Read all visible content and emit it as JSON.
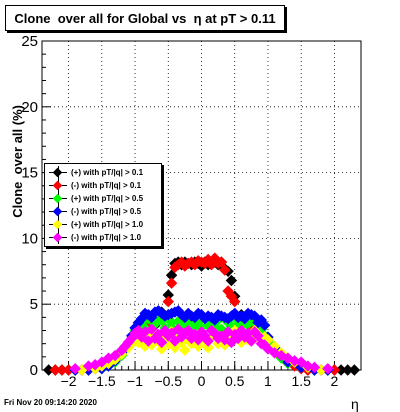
{
  "header": {
    "title": "Clone  over all for Global vs  η at pT > 0.11",
    "datestamp": "Fri Nov 20 09:14:20 2020"
  },
  "chart_data": {
    "type": "scatter",
    "title": "Clone  over all for Global vs  η at pT > 0.11",
    "xlabel": "η",
    "ylabel": "Clone  over all (%)",
    "xlim": [
      -2.4,
      2.4
    ],
    "ylim": [
      0,
      25
    ],
    "xticks": [
      "−2",
      "−1.5",
      "−1",
      "−0.5",
      "0",
      "0.5",
      "1",
      "1.5",
      "2"
    ],
    "xtick_values": [
      -2,
      -1.5,
      -1,
      -0.5,
      0,
      0.5,
      1,
      1.5,
      2
    ],
    "yticks": [
      "0",
      "5",
      "10",
      "15",
      "20",
      "25"
    ],
    "ytick_values": [
      0,
      5,
      10,
      15,
      20,
      25
    ],
    "grid": true,
    "legend_position": "middle-left",
    "marker": "diamond",
    "series": [
      {
        "name": "(+) with pT/|q| > 0.1",
        "color": "#000000",
        "x": [
          -2.3,
          -2.2,
          -2.1,
          -2.0,
          -1.9,
          -1.8,
          -1.7,
          -1.6,
          -1.5,
          -1.4,
          -1.3,
          -1.2,
          -1.1,
          -1.0,
          -0.9,
          -0.8,
          -0.7,
          -0.6,
          -0.5,
          -0.45,
          -0.4,
          -0.35,
          -0.3,
          -0.25,
          -0.2,
          -0.15,
          -0.1,
          -0.05,
          0.0,
          0.05,
          0.1,
          0.15,
          0.2,
          0.25,
          0.3,
          0.35,
          0.4,
          0.45,
          0.5,
          0.6,
          0.7,
          0.8,
          0.9,
          1.0,
          1.1,
          1.2,
          1.3,
          1.4,
          1.5,
          1.6,
          1.7,
          1.8,
          1.9,
          2.0,
          2.1,
          2.2,
          2.3
        ],
        "y": [
          0,
          0,
          0,
          0,
          0,
          0,
          0,
          0.1,
          0.3,
          0.6,
          1.0,
          1.5,
          2.0,
          2.5,
          3.0,
          3.2,
          3.4,
          4.4,
          5.7,
          7.2,
          8.1,
          8.2,
          8.0,
          8.2,
          8.1,
          8.0,
          8.2,
          8.1,
          7.9,
          8.2,
          8.0,
          8.1,
          8.2,
          8.0,
          8.2,
          7.7,
          7.5,
          6.8,
          5.6,
          4.2,
          3.2,
          3.0,
          2.7,
          2.3,
          1.7,
          1.1,
          0.8,
          0.4,
          0.2,
          0,
          0,
          0,
          0,
          0,
          0,
          0,
          0
        ]
      },
      {
        "name": "(-) with pT/|q| > 0.1",
        "color": "#ff0000",
        "x": [
          -2.2,
          -2.1,
          -2.0,
          -1.9,
          -1.8,
          -1.7,
          -1.6,
          -1.5,
          -1.4,
          -1.3,
          -1.2,
          -1.1,
          -1.0,
          -0.9,
          -0.8,
          -0.7,
          -0.6,
          -0.5,
          -0.45,
          -0.4,
          -0.35,
          -0.3,
          -0.25,
          -0.2,
          -0.15,
          -0.1,
          -0.05,
          0.0,
          0.05,
          0.1,
          0.15,
          0.2,
          0.25,
          0.3,
          0.35,
          0.4,
          0.45,
          0.5,
          0.6,
          0.7,
          0.8,
          0.9,
          1.0,
          1.1,
          1.2,
          1.3,
          1.4,
          1.5,
          1.6,
          1.7,
          1.8,
          1.9,
          2.0
        ],
        "y": [
          0,
          0,
          0,
          0,
          0,
          0,
          0.1,
          0.2,
          0.5,
          0.9,
          1.4,
          2.0,
          2.4,
          3.5,
          3.4,
          3.6,
          4.0,
          5.2,
          6.6,
          7.8,
          8.0,
          8.2,
          7.9,
          8.1,
          8.2,
          8.0,
          8.3,
          8.2,
          8.1,
          8.4,
          8.0,
          8.5,
          8.1,
          8.2,
          7.6,
          6.0,
          5.6,
          5.2,
          4.0,
          3.4,
          3.2,
          2.8,
          2.3,
          1.4,
          1.0,
          0.6,
          0.3,
          0.1,
          0,
          0,
          0,
          0,
          0
        ]
      },
      {
        "name": "(+) with pT/|q| > 0.5",
        "color": "#00ff00",
        "x": [
          -1.9,
          -1.7,
          -1.5,
          -1.4,
          -1.3,
          -1.2,
          -1.1,
          -1.05,
          -1.0,
          -0.95,
          -0.9,
          -0.85,
          -0.8,
          -0.75,
          -0.7,
          -0.65,
          -0.6,
          -0.55,
          -0.5,
          -0.45,
          -0.4,
          -0.35,
          -0.3,
          -0.25,
          -0.2,
          -0.15,
          -0.1,
          -0.05,
          0.0,
          0.05,
          0.1,
          0.15,
          0.2,
          0.25,
          0.3,
          0.35,
          0.4,
          0.45,
          0.5,
          0.55,
          0.6,
          0.65,
          0.7,
          0.75,
          0.8,
          0.85,
          0.9,
          0.95,
          1.0,
          1.1,
          1.2,
          1.3,
          1.5,
          1.7,
          1.9
        ],
        "y": [
          0,
          0,
          0.1,
          0.3,
          0.6,
          1.1,
          1.8,
          2.4,
          3.0,
          3.3,
          3.6,
          3.2,
          3.9,
          3.0,
          3.5,
          4.1,
          3.8,
          3.2,
          3.9,
          3.6,
          3.0,
          3.7,
          3.4,
          3.1,
          3.8,
          3.5,
          3.3,
          3.6,
          3.2,
          3.9,
          3.4,
          3.7,
          3.3,
          3.8,
          3.1,
          3.9,
          3.6,
          3.3,
          4.0,
          3.4,
          3.8,
          3.3,
          3.5,
          4.0,
          3.6,
          3.2,
          3.1,
          2.6,
          2.1,
          1.4,
          0.9,
          0.5,
          0.2,
          0,
          0
        ]
      },
      {
        "name": "(-) with pT/|q| > 0.5",
        "color": "#0000ff",
        "x": [
          -1.9,
          -1.7,
          -1.5,
          -1.4,
          -1.3,
          -1.2,
          -1.1,
          -1.05,
          -1.0,
          -0.95,
          -0.9,
          -0.85,
          -0.8,
          -0.75,
          -0.7,
          -0.65,
          -0.6,
          -0.55,
          -0.5,
          -0.45,
          -0.4,
          -0.35,
          -0.3,
          -0.25,
          -0.2,
          -0.15,
          -0.1,
          -0.05,
          0.0,
          0.05,
          0.1,
          0.15,
          0.2,
          0.25,
          0.3,
          0.35,
          0.4,
          0.45,
          0.5,
          0.55,
          0.6,
          0.65,
          0.7,
          0.75,
          0.8,
          0.85,
          0.9,
          0.95,
          1.0,
          1.1,
          1.2,
          1.3,
          1.5,
          1.7,
          1.9
        ],
        "y": [
          0,
          0,
          0.1,
          0.3,
          0.7,
          1.3,
          2.1,
          2.6,
          3.2,
          3.6,
          3.9,
          4.3,
          4.2,
          4.0,
          4.4,
          4.5,
          4.3,
          4.1,
          4.2,
          4.3,
          4.4,
          4.5,
          4.2,
          4.0,
          4.3,
          4.1,
          4.0,
          4.3,
          4.2,
          3.9,
          4.1,
          4.0,
          3.8,
          4.2,
          4.1,
          4.0,
          3.9,
          4.1,
          4.3,
          4.0,
          4.1,
          3.9,
          4.3,
          4.2,
          4.1,
          3.6,
          3.8,
          3.4,
          2.5,
          1.7,
          1.1,
          0.6,
          0.2,
          0,
          0
        ]
      },
      {
        "name": "(+) with pT/|q| > 1.0",
        "color": "#ffff00",
        "x": [
          -1.8,
          -1.6,
          -1.5,
          -1.4,
          -1.3,
          -1.2,
          -1.1,
          -1.05,
          -1.0,
          -0.95,
          -0.9,
          -0.85,
          -0.8,
          -0.75,
          -0.7,
          -0.65,
          -0.6,
          -0.55,
          -0.5,
          -0.45,
          -0.4,
          -0.35,
          -0.3,
          -0.25,
          -0.2,
          -0.15,
          -0.1,
          -0.05,
          0.0,
          0.05,
          0.1,
          0.15,
          0.2,
          0.25,
          0.3,
          0.35,
          0.4,
          0.45,
          0.5,
          0.55,
          0.6,
          0.65,
          0.7,
          0.75,
          0.8,
          0.85,
          0.9,
          0.95,
          1.0,
          1.1,
          1.2,
          1.3,
          1.4,
          1.6,
          1.8
        ],
        "y": [
          0,
          0.1,
          0.3,
          0.5,
          0.8,
          1.2,
          1.7,
          2.0,
          2.4,
          2.1,
          2.7,
          1.8,
          2.5,
          1.9,
          2.8,
          2.2,
          1.6,
          2.6,
          2.0,
          2.9,
          1.7,
          2.4,
          2.1,
          1.5,
          2.3,
          2.0,
          2.6,
          1.8,
          2.9,
          2.2,
          1.7,
          2.5,
          2.8,
          2.0,
          2.4,
          1.9,
          2.6,
          2.2,
          3.0,
          2.4,
          2.1,
          2.8,
          2.3,
          2.5,
          3.0,
          2.7,
          2.2,
          2.5,
          2.3,
          1.8,
          1.3,
          0.9,
          0.6,
          0.2,
          0
        ]
      },
      {
        "name": "(-) with pT/|q| > 1.0",
        "color": "#ff00ff",
        "x": [
          -1.9,
          -1.7,
          -1.6,
          -1.5,
          -1.4,
          -1.3,
          -1.2,
          -1.15,
          -1.1,
          -1.05,
          -1.0,
          -0.95,
          -0.9,
          -0.85,
          -0.8,
          -0.75,
          -0.7,
          -0.65,
          -0.6,
          -0.55,
          -0.5,
          -0.45,
          -0.4,
          -0.35,
          -0.3,
          -0.25,
          -0.2,
          -0.15,
          -0.1,
          -0.05,
          0.0,
          0.05,
          0.1,
          0.15,
          0.2,
          0.25,
          0.3,
          0.35,
          0.4,
          0.45,
          0.5,
          0.55,
          0.6,
          0.65,
          0.7,
          0.75,
          0.8,
          0.85,
          0.9,
          0.95,
          1.0,
          1.1,
          1.2,
          1.3,
          1.4,
          1.5,
          1.6,
          1.7,
          1.9
        ],
        "y": [
          0.1,
          0.3,
          0.4,
          0.6,
          0.9,
          1.1,
          1.5,
          1.8,
          2.1,
          2.4,
          2.8,
          3.0,
          2.5,
          2.9,
          2.2,
          3.1,
          2.4,
          2.7,
          2.1,
          3.0,
          2.6,
          2.8,
          2.2,
          3.1,
          2.5,
          2.8,
          3.0,
          2.4,
          2.7,
          2.3,
          2.9,
          2.6,
          2.2,
          3.0,
          2.8,
          2.4,
          2.6,
          2.3,
          2.9,
          2.1,
          2.7,
          2.4,
          3.0,
          2.5,
          2.8,
          2.2,
          2.9,
          2.6,
          2.0,
          1.9,
          1.6,
          1.3,
          1.1,
          0.9,
          0.7,
          0.6,
          0.3,
          0.2,
          0.1
        ]
      }
    ]
  }
}
